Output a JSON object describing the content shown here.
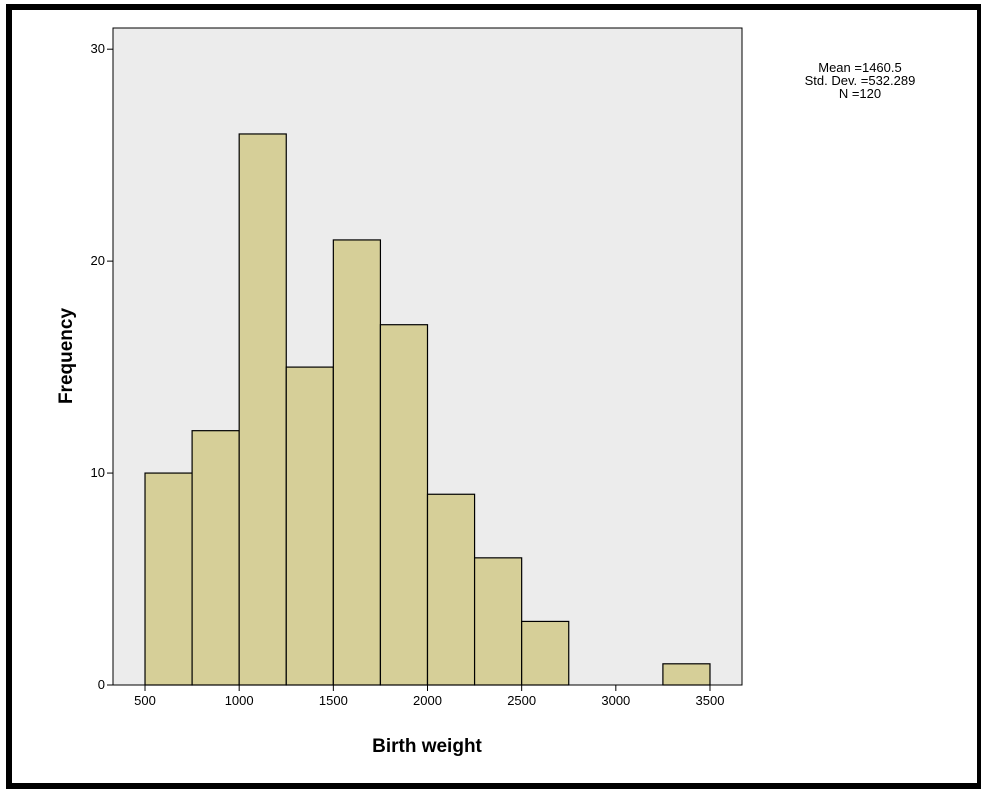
{
  "chart_data": {
    "type": "bar",
    "subtype": "histogram",
    "bin_edges": [
      500,
      750,
      1000,
      1250,
      1500,
      1750,
      2000,
      2250,
      2500,
      2750,
      3000,
      3250,
      3500
    ],
    "values": [
      10,
      12,
      26,
      15,
      21,
      17,
      9,
      6,
      3,
      0,
      0,
      1
    ],
    "xlabel": "Birth weight",
    "ylabel": "Frequency",
    "xlim": [
      330,
      3670
    ],
    "ylim": [
      0,
      31
    ],
    "xticks": [
      500,
      1000,
      1500,
      2000,
      2500,
      3000,
      3500
    ],
    "yticks": [
      0,
      10,
      20,
      30
    ],
    "stats": [
      "Mean =1460.5",
      "Std. Dev. =532.289",
      "N =120"
    ],
    "grid": false,
    "colors": {
      "bar_fill": "#d6cf98",
      "bar_edge": "#000000",
      "plot_bg": "#ececec"
    }
  }
}
